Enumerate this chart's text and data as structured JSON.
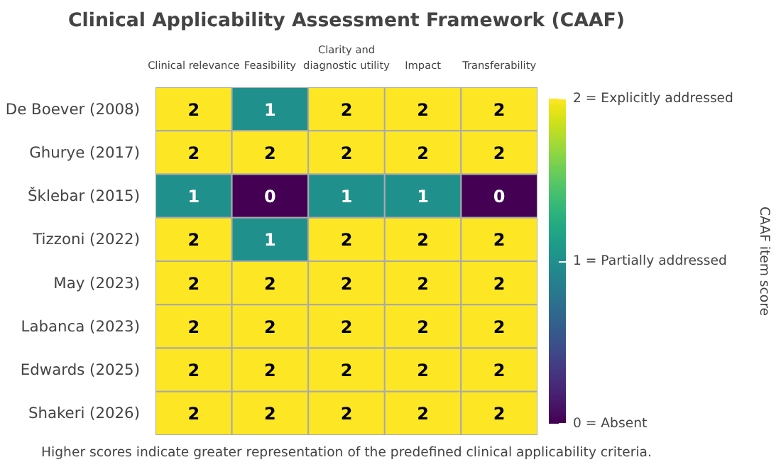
{
  "chart_data": {
    "type": "heatmap",
    "title": "Clinical Applicability Assessment Framework (CAAF)",
    "categories": [
      "Clinical relevance",
      "Feasibility",
      "Clarity and diagnostic utility",
      "Impact",
      "Transferability"
    ],
    "y_categories": [
      "De Boever (2008)",
      "Ghurye (2017)",
      "Šklebar (2015)",
      "Tizzoni (2022)",
      "May (2023)",
      "Labanca (2023)",
      "Edwards (2025)",
      "Shakeri (2026)"
    ],
    "cells": [
      [
        2,
        1,
        2,
        2,
        2
      ],
      [
        2,
        2,
        2,
        2,
        2
      ],
      [
        1,
        0,
        1,
        1,
        0
      ],
      [
        2,
        1,
        2,
        2,
        2
      ],
      [
        2,
        2,
        2,
        2,
        2
      ],
      [
        2,
        2,
        2,
        2,
        2
      ],
      [
        2,
        2,
        2,
        2,
        2
      ],
      [
        2,
        2,
        2,
        2,
        2
      ]
    ],
    "data_labels": true,
    "clim": [
      0,
      2
    ],
    "cticks": [
      {
        "value": 0,
        "label": "0 = Absent"
      },
      {
        "value": 1,
        "label": "1 = Partially addressed"
      },
      {
        "value": 2,
        "label": "2 = Explicitly addressed"
      }
    ],
    "clabel": "CAAF item score",
    "annotations": [
      "Higher scores indicate greater representation of the predefined clinical applicability criteria."
    ]
  }
}
